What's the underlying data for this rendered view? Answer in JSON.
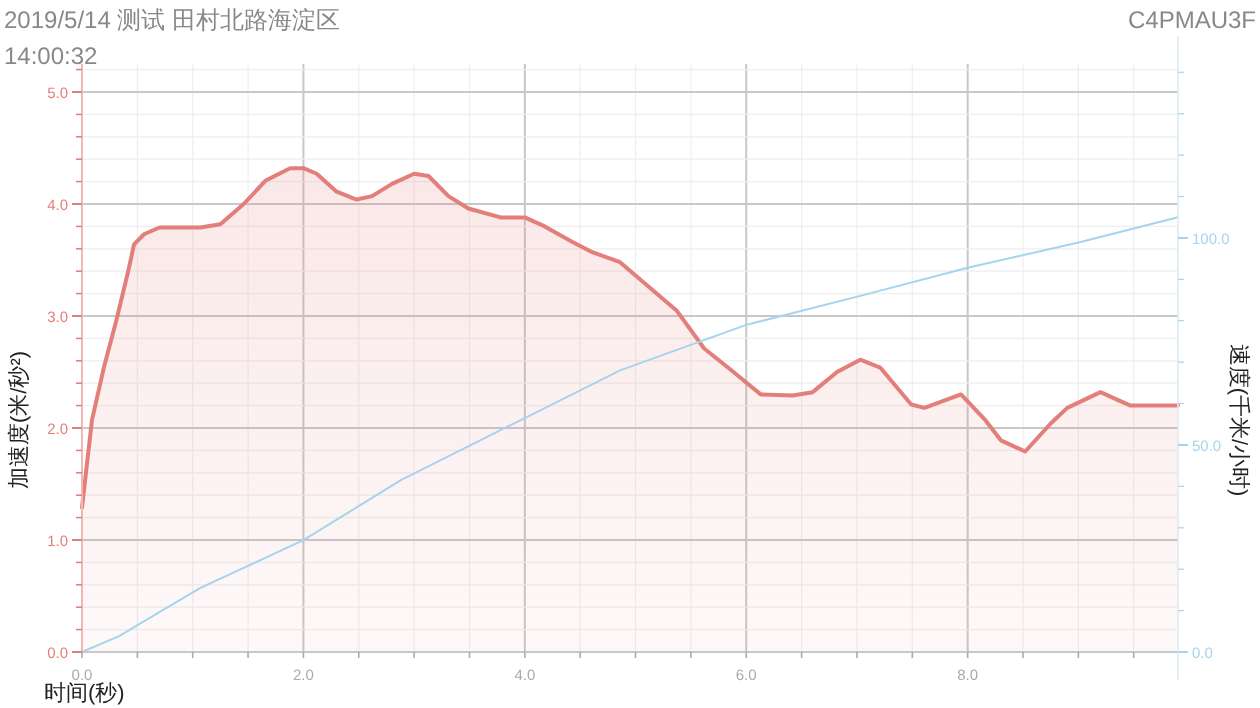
{
  "chart_data": {
    "type": "area",
    "title": "2019/5/14 测试 田村北路海淀区",
    "subtitle": "14:00:32",
    "annotations": [
      "C4PMAU3F"
    ],
    "xlabel": "时间(秒)",
    "ylabel": "加速度(米/秒²)",
    "y2label": "速度(千米/小时)",
    "xlim": [
      0,
      9.9
    ],
    "xticks": [
      {
        "value": 0,
        "label": "0.0"
      },
      {
        "value": 2,
        "label": "2.0"
      },
      {
        "value": 4,
        "label": "4.0"
      },
      {
        "value": 6,
        "label": "6.0"
      },
      {
        "value": 8,
        "label": "8.0"
      }
    ],
    "ylim": [
      0,
      5.25
    ],
    "yticks": [
      {
        "value": 0,
        "label": "0.0"
      },
      {
        "value": 1,
        "label": "1.0"
      },
      {
        "value": 2,
        "label": "2.0"
      },
      {
        "value": 3,
        "label": "3.0"
      },
      {
        "value": 4,
        "label": "4.0"
      },
      {
        "value": 5,
        "label": "5.0"
      }
    ],
    "y2lim": [
      0,
      142
    ],
    "y2ticks": [
      {
        "value": 0,
        "label": "0.0"
      },
      {
        "value": 50,
        "label": "50.0"
      },
      {
        "value": 100,
        "label": "100.0"
      }
    ],
    "grid": true,
    "marker": "none",
    "line_style": "solid",
    "series": [
      {
        "type": "area",
        "color": "#e37f7b",
        "x": [
          0,
          0.09,
          0.2,
          0.31,
          0.42,
          0.47,
          0.56,
          0.7,
          1.07,
          1.25,
          1.46,
          1.66,
          1.88,
          2.0,
          2.12,
          2.3,
          2.48,
          2.62,
          2.8,
          3.0,
          3.13,
          3.31,
          3.49,
          3.78,
          4.0,
          4.18,
          4.43,
          4.61,
          4.86,
          5.05,
          5.37,
          5.62,
          5.86,
          6.13,
          6.42,
          6.6,
          6.82,
          7.03,
          7.21,
          7.49,
          7.61,
          7.94,
          8.16,
          8.3,
          8.52,
          8.75,
          8.9,
          9.2,
          9.47,
          9.9
        ],
        "values": [
          1.29,
          2.07,
          2.55,
          2.96,
          3.41,
          3.64,
          3.73,
          3.79,
          3.79,
          3.82,
          4.0,
          4.21,
          4.32,
          4.32,
          4.27,
          4.11,
          4.04,
          4.07,
          4.18,
          4.27,
          4.25,
          4.07,
          3.96,
          3.88,
          3.88,
          3.8,
          3.66,
          3.57,
          3.48,
          3.32,
          3.05,
          2.71,
          2.52,
          2.3,
          2.29,
          2.32,
          2.5,
          2.61,
          2.54,
          2.21,
          2.18,
          2.3,
          2.07,
          1.89,
          1.79,
          2.04,
          2.18,
          2.32,
          2.2,
          2.2
        ]
      },
      {
        "type": "line",
        "axis": "y2",
        "color": "#a6d3ee",
        "x": [
          0,
          0.34,
          0.52,
          1.07,
          2.0,
          2.88,
          4.0,
          4.86,
          6.0,
          7.03,
          8.0,
          9.02,
          9.9
        ],
        "values": [
          0,
          3.9,
          6.8,
          15.5,
          27,
          41.5,
          56.5,
          68,
          79,
          86,
          92.8,
          99,
          105
        ]
      }
    ]
  }
}
